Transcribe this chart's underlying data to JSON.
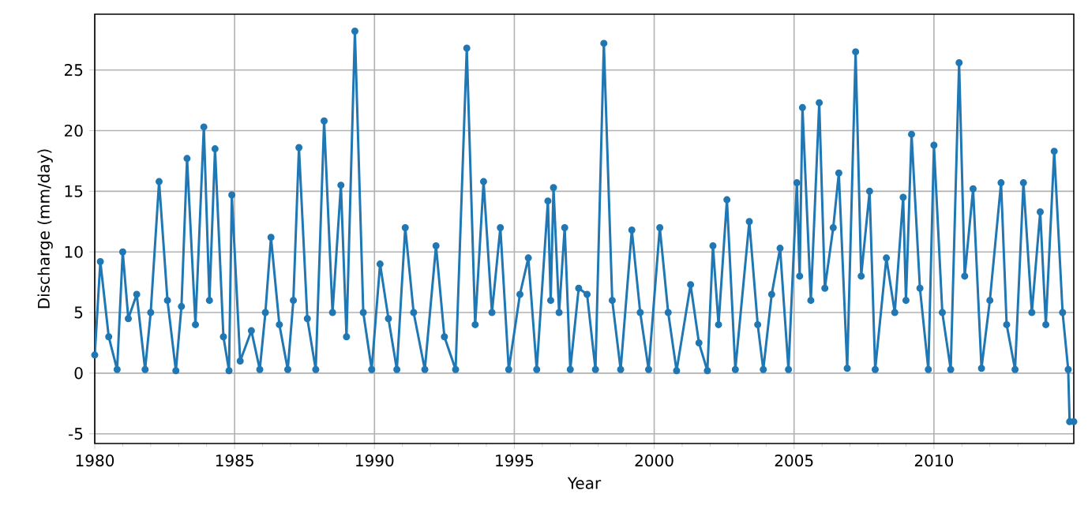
{
  "chart_data": {
    "type": "line",
    "xlabel": "Year",
    "ylabel": "Discharge (mm/day)",
    "xlim": [
      1980,
      2015
    ],
    "ylim": [
      -5.8,
      29.6
    ],
    "xticks": [
      1980,
      {
        "value": 1981,
        "label": null
      },
      {
        "value": 1982,
        "label": null
      },
      {
        "value": 1983,
        "label": null
      },
      {
        "value": 1984,
        "label": null
      },
      1985,
      {
        "value": 1986,
        "label": null
      },
      {
        "value": 1987,
        "label": null
      },
      {
        "value": 1988,
        "label": null
      },
      {
        "value": 1989,
        "label": null
      },
      1990,
      {
        "value": 1991,
        "label": null
      },
      {
        "value": 1992,
        "label": null
      },
      {
        "value": 1993,
        "label": null
      },
      {
        "value": 1994,
        "label": null
      },
      1995,
      {
        "value": 1996,
        "label": null
      },
      {
        "value": 1997,
        "label": null
      },
      {
        "value": 1998,
        "label": null
      },
      {
        "value": 1999,
        "label": null
      },
      2000,
      {
        "value": 2001,
        "label": null
      },
      {
        "value": 2002,
        "label": null
      },
      {
        "value": 2003,
        "label": null
      },
      {
        "value": 2004,
        "label": null
      },
      2005,
      {
        "value": 2006,
        "label": null
      },
      {
        "value": 2007,
        "label": null
      },
      {
        "value": 2008,
        "label": null
      },
      {
        "value": 2009,
        "label": null
      },
      2010,
      {
        "value": 2011,
        "label": null
      },
      {
        "value": 2012,
        "label": null
      },
      {
        "value": 2013,
        "label": null
      },
      {
        "value": 2014,
        "label": null
      }
    ],
    "yticks": [
      -5,
      0,
      5,
      10,
      15,
      20,
      25
    ],
    "grid": true,
    "marker": "circle",
    "line_style": "solid",
    "x": [
      1980.0,
      1980.2,
      1980.5,
      1980.8,
      1981.0,
      1981.2,
      1981.5,
      1981.8,
      1982.0,
      1982.3,
      1982.6,
      1982.9,
      1983.1,
      1983.3,
      1983.6,
      1983.9,
      1984.1,
      1984.3,
      1984.6,
      1984.8,
      1984.9,
      1985.2,
      1985.6,
      1985.9,
      1986.1,
      1986.3,
      1986.6,
      1986.9,
      1987.1,
      1987.3,
      1987.6,
      1987.9,
      1988.2,
      1988.5,
      1988.8,
      1989.0,
      1989.3,
      1989.6,
      1989.9,
      1990.2,
      1990.5,
      1990.8,
      1991.1,
      1991.4,
      1991.8,
      1992.2,
      1992.5,
      1992.9,
      1993.3,
      1993.6,
      1993.9,
      1994.2,
      1994.5,
      1994.8,
      1995.2,
      1995.5,
      1995.8,
      1996.2,
      1996.3,
      1996.4,
      1996.6,
      1996.8,
      1997.0,
      1997.3,
      1997.6,
      1997.9,
      1998.2,
      1998.5,
      1998.8,
      1999.2,
      1999.5,
      1999.8,
      2000.2,
      2000.5,
      2000.8,
      2001.3,
      2001.6,
      2001.9,
      2002.1,
      2002.3,
      2002.6,
      2002.9,
      2003.4,
      2003.7,
      2003.9,
      2004.2,
      2004.5,
      2004.8,
      2005.1,
      2005.2,
      2005.3,
      2005.6,
      2005.9,
      2006.1,
      2006.4,
      2006.6,
      2006.9,
      2007.2,
      2007.4,
      2007.7,
      2007.9,
      2008.3,
      2008.6,
      2008.9,
      2009.0,
      2009.2,
      2009.5,
      2009.8,
      2010.0,
      2010.3,
      2010.6,
      2010.9,
      2011.1,
      2011.4,
      2011.7,
      2012.0,
      2012.4,
      2012.6,
      2012.9,
      2013.2,
      2013.5,
      2013.8,
      2014.0,
      2014.3,
      2014.6,
      2014.8,
      2014.85,
      2015.0
    ],
    "series": [
      {
        "color": "#1f77b4",
        "values": [
          1.5,
          9.2,
          3.0,
          0.3,
          10.0,
          4.5,
          6.5,
          0.3,
          5.0,
          15.8,
          6.0,
          0.2,
          5.5,
          17.7,
          4.0,
          20.3,
          6.0,
          18.5,
          3.0,
          0.2,
          14.7,
          1.0,
          3.5,
          0.3,
          5.0,
          11.2,
          4.0,
          0.3,
          6.0,
          18.6,
          4.5,
          0.3,
          20.8,
          5.0,
          15.5,
          3.0,
          28.2,
          5.0,
          0.3,
          9.0,
          4.5,
          0.3,
          12.0,
          5.0,
          0.3,
          10.5,
          3.0,
          0.3,
          26.8,
          4.0,
          15.8,
          5.0,
          12.0,
          0.3,
          6.5,
          9.5,
          0.3,
          14.2,
          6.0,
          15.3,
          5.0,
          12.0,
          0.3,
          7.0,
          6.5,
          0.3,
          27.2,
          6.0,
          0.3,
          11.8,
          5.0,
          0.3,
          12.0,
          5.0,
          0.2,
          7.3,
          2.5,
          0.2,
          10.5,
          4.0,
          14.3,
          0.3,
          12.5,
          4.0,
          0.3,
          6.5,
          10.3,
          0.3,
          15.7,
          8.0,
          21.9,
          6.0,
          22.3,
          7.0,
          12.0,
          16.5,
          0.4,
          26.5,
          8.0,
          15.0,
          0.3,
          9.5,
          5.0,
          14.5,
          6.0,
          19.7,
          7.0,
          0.3,
          18.8,
          5.0,
          0.3,
          25.6,
          8.0,
          15.2,
          0.4,
          6.0,
          15.7,
          4.0,
          0.3,
          15.7,
          5.0,
          13.3,
          4.0,
          18.3,
          5.0,
          0.3,
          -4.0,
          -4.0
        ]
      }
    ]
  }
}
